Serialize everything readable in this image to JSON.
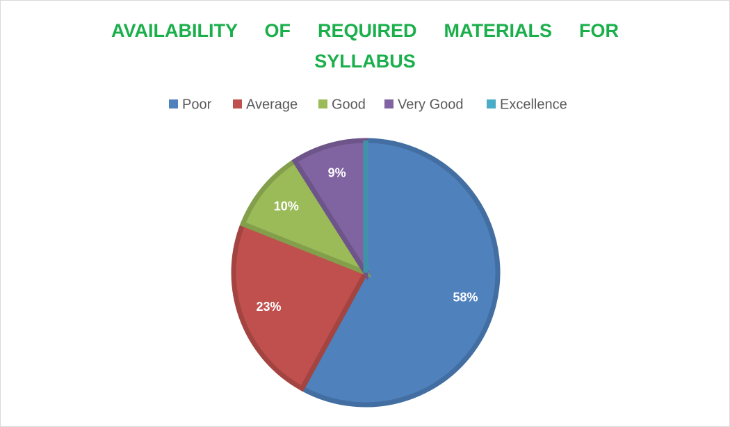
{
  "chart_data": {
    "type": "pie",
    "title": "AVAILABILITY OF REQUIRED MATERIALS FOR SYLLABUS",
    "categories": [
      "Poor",
      "Average",
      "Good",
      "Very Good",
      "Excellence"
    ],
    "values": [
      58,
      23,
      10,
      9,
      0
    ],
    "value_labels": [
      "58%",
      "23%",
      "10%",
      "9%",
      null
    ],
    "colors": [
      "#4f81bd",
      "#c0504d",
      "#9bbb59",
      "#8064a2",
      "#4bacc6"
    ],
    "legend": "top"
  }
}
